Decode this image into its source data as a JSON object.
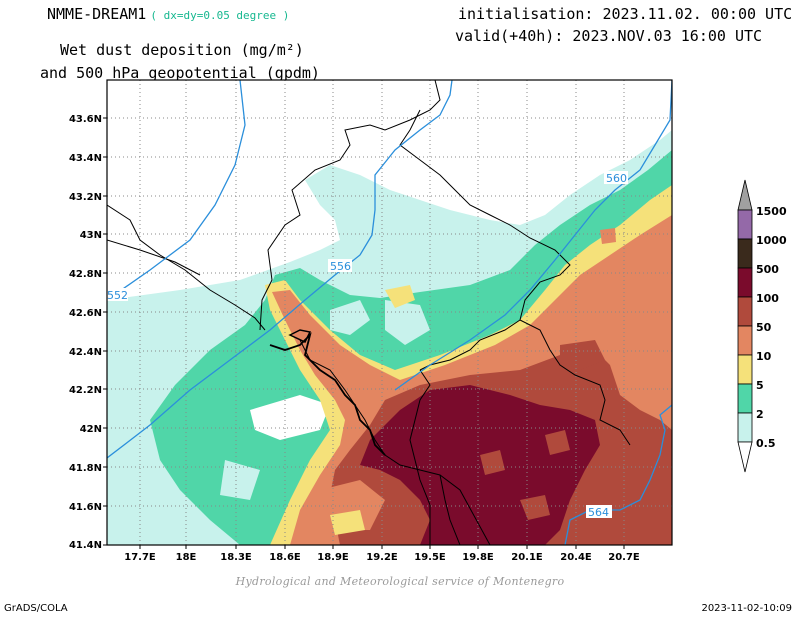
{
  "header": {
    "model_name": "NMME-DREAM1",
    "model_resolution": "( dx=dy=0.05 degree )",
    "title_line1": "Wet dust deposition (mg/m²)",
    "title_line2": "and 500 hPa geopotential (gpdm)",
    "initialisation": "initialisation: 2023.11.02. 00:00 UTC",
    "valid": "valid(+40h): 2023.NOV.03 16:00 UTC"
  },
  "map": {
    "lat_labels": [
      "43.6N",
      "43.4N",
      "43.2N",
      "43N",
      "42.8N",
      "42.6N",
      "42.4N",
      "42.2N",
      "42N",
      "41.8N",
      "41.6N",
      "41.4N"
    ],
    "lon_labels": [
      "17.7E",
      "18E",
      "18.3E",
      "18.6E",
      "18.9E",
      "19.2E",
      "19.5E",
      "19.8E",
      "20.1E",
      "20.4E",
      "20.7E"
    ],
    "contour_labels": [
      "552",
      "556",
      "560",
      "564"
    ]
  },
  "legend": {
    "levels": [
      "1500",
      "1000",
      "500",
      "100",
      "50",
      "10",
      "5",
      "2",
      "0.5"
    ],
    "colors": [
      "#a0a0a0",
      "#9469a8",
      "#3a2a1c",
      "#7a0b2c",
      "#b04a3c",
      "#e38661",
      "#f5e17a",
      "#50d6a8",
      "#c8f2ec"
    ]
  },
  "credit": "Hydrological and Meteorological service of Montenegro",
  "footer": {
    "left": "GrADS/COLA",
    "right": "2023-11-02-10:09"
  }
}
